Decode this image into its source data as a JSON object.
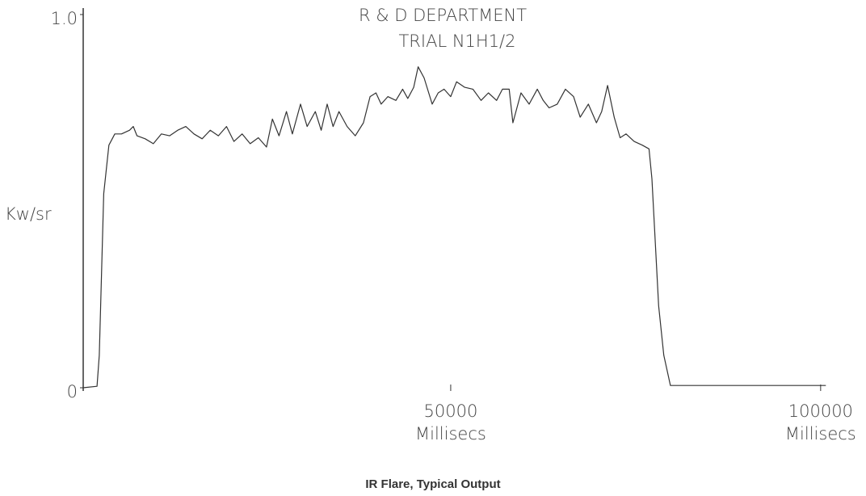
{
  "chart_data": {
    "type": "line",
    "title": "R & D DEPARTMENT",
    "subtitle": "TRIAL N1H1/2",
    "ylabel": "Kw/sr",
    "xlabel": "Millisecs",
    "caption": "IR Flare, Typical Output",
    "xlim": [
      0,
      101000
    ],
    "ylim": [
      0,
      1
    ],
    "xticks": [
      50000,
      100000
    ],
    "yticks": [
      0,
      {
        "value": 1,
        "label": "1.0"
      }
    ],
    "color": "#333333",
    "x": [
      300,
      2200,
      2500,
      3100,
      3800,
      4600,
      5500,
      6600,
      7100,
      7600,
      8700,
      9800,
      10900,
      12000,
      13100,
      14200,
      15300,
      16400,
      17500,
      18600,
      19700,
      20700,
      21800,
      22900,
      24000,
      25100,
      25900,
      26800,
      27800,
      28600,
      29700,
      30600,
      31700,
      32500,
      33300,
      34100,
      34900,
      36000,
      37100,
      38200,
      39100,
      39900,
      40600,
      41500,
      42600,
      43500,
      44200,
      45000,
      45600,
      46400,
      47500,
      48300,
      49100,
      50000,
      50800,
      51900,
      53000,
      54100,
      55100,
      56200,
      57000,
      57900,
      58400,
      59500,
      60600,
      61700,
      62500,
      63300,
      64400,
      65500,
      66600,
      67500,
      68600,
      69700,
      70400,
      71200,
      72100,
      72900,
      73700,
      74800,
      75900,
      76800,
      77200,
      78100,
      78800,
      79700,
      87400,
      100700
    ],
    "values": [
      0,
      0.004,
      0.087,
      0.52,
      0.65,
      0.68,
      0.68,
      0.69,
      0.7,
      0.675,
      0.667,
      0.654,
      0.68,
      0.675,
      0.69,
      0.7,
      0.68,
      0.667,
      0.69,
      0.675,
      0.7,
      0.66,
      0.68,
      0.654,
      0.67,
      0.645,
      0.72,
      0.675,
      0.74,
      0.68,
      0.76,
      0.7,
      0.74,
      0.69,
      0.76,
      0.7,
      0.74,
      0.7,
      0.675,
      0.71,
      0.78,
      0.79,
      0.76,
      0.78,
      0.77,
      0.8,
      0.775,
      0.805,
      0.86,
      0.83,
      0.76,
      0.79,
      0.8,
      0.78,
      0.82,
      0.805,
      0.8,
      0.77,
      0.79,
      0.77,
      0.8,
      0.8,
      0.71,
      0.79,
      0.76,
      0.8,
      0.77,
      0.75,
      0.76,
      0.8,
      0.78,
      0.725,
      0.76,
      0.71,
      0.74,
      0.81,
      0.725,
      0.67,
      0.68,
      0.66,
      0.65,
      0.64,
      0.56,
      0.22,
      0.087,
      0.006,
      0.006,
      0.006
    ]
  }
}
